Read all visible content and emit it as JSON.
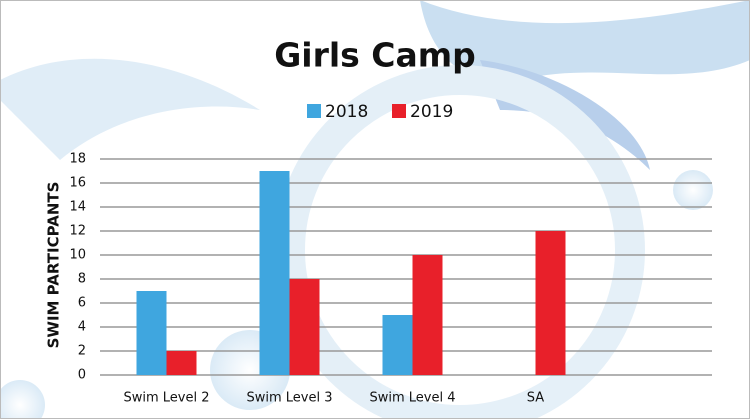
{
  "chart_data": {
    "type": "bar",
    "title": "Girls Camp",
    "y_label": "SWIM PARTICPANTS",
    "categories": [
      "Swim Level 2",
      "Swim Level 3",
      "Swim Level 4",
      "SA"
    ],
    "series": [
      {
        "name": "2018",
        "color": "#3fa6df",
        "values": [
          7,
          17,
          5,
          null
        ]
      },
      {
        "name": "2019",
        "color": "#e8202a",
        "values": [
          2,
          8,
          10,
          12
        ]
      }
    ],
    "ylim": [
      0,
      18
    ],
    "yticks": [
      0,
      2,
      4,
      6,
      8,
      10,
      12,
      14,
      16,
      18
    ],
    "grid": true,
    "legend": "top"
  }
}
